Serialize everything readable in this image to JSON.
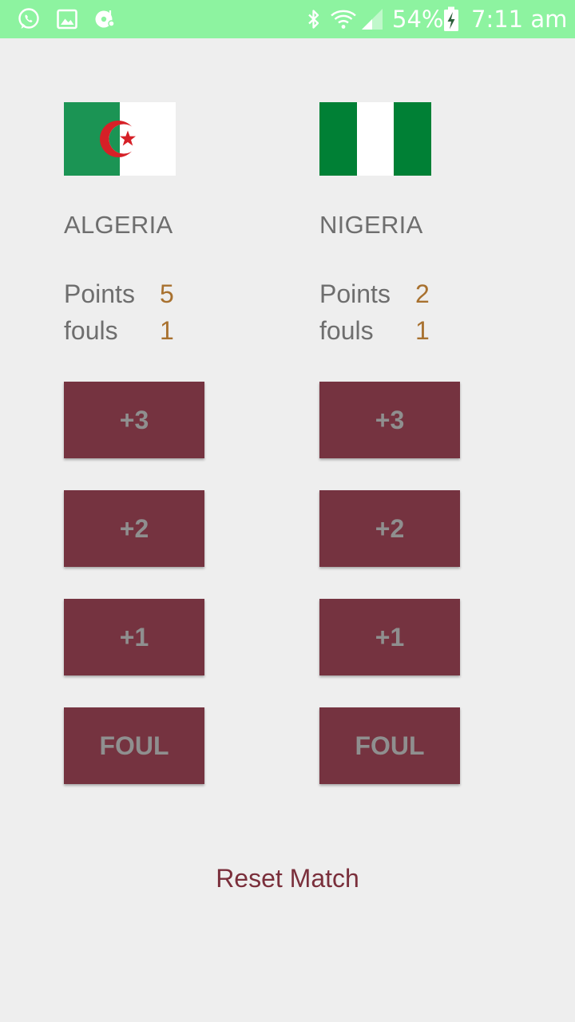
{
  "status_bar": {
    "battery": "54%",
    "time": "7:11 am",
    "left_icons": [
      "whatsapp-icon",
      "gallery-icon",
      "music-disc-icon"
    ],
    "right_icons": [
      "bluetooth-icon",
      "wifi-icon",
      "signal-icon",
      "battery-charging-icon"
    ],
    "background_color": "#8df3a0"
  },
  "teams": [
    {
      "name": "ALGERIA",
      "flag": "algeria-flag",
      "points_label": "Points",
      "points_value": "5",
      "fouls_label": "fouls",
      "fouls_value": "1",
      "buttons": {
        "plus3": "+3",
        "plus2": "+2",
        "plus1": "+1",
        "foul": "FOUL"
      }
    },
    {
      "name": "NIGERIA",
      "flag": "nigeria-flag",
      "points_label": "Points",
      "points_value": "2",
      "fouls_label": "fouls",
      "fouls_value": "1",
      "buttons": {
        "plus3": "+3",
        "plus2": "+2",
        "plus1": "+1",
        "foul": "FOUL"
      }
    }
  ],
  "reset_label": "Reset Match",
  "colors": {
    "button_background": "#753340",
    "button_text": "#8f8f8f",
    "score_value": "#a8712f",
    "reset_text": "#7a2f3b",
    "page_background": "#eeeeee"
  }
}
